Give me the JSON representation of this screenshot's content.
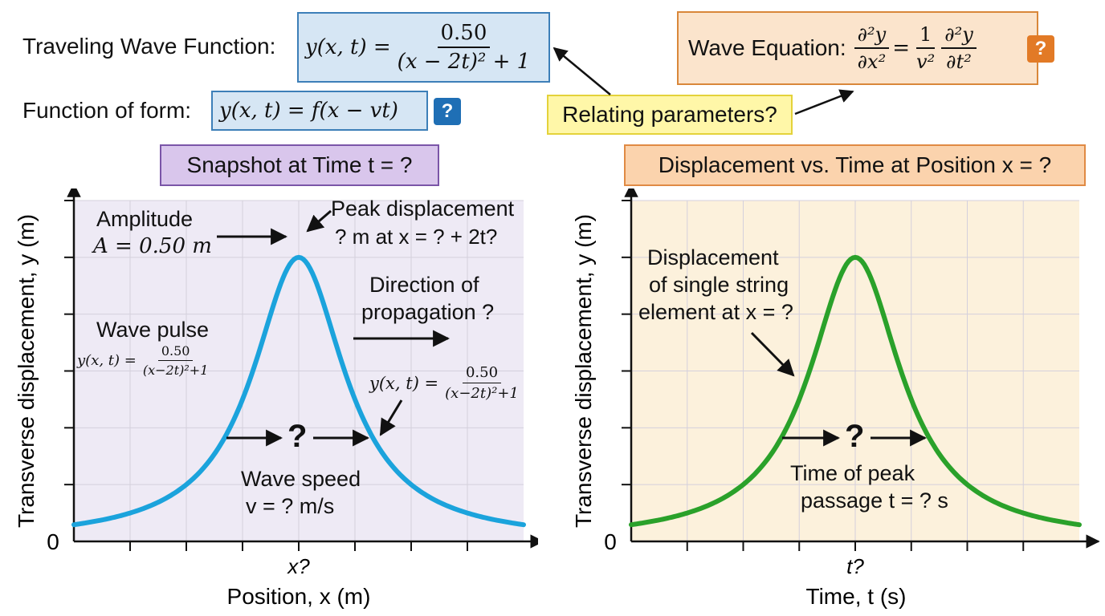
{
  "header": {
    "traveling_label": "Traveling Wave Function:",
    "traveling_lhs": "y(x, t) =",
    "traveling_num": "0.50",
    "traveling_den": "(x − 2t)² + 1",
    "form_label": "Function of form:",
    "form_expr": "y(x, t) = f(x − vt)",
    "form_badge": "?",
    "relating": "Relating parameters?",
    "wave_eq_label": "Wave Equation:",
    "wave_eq_lhs_num": "∂²y",
    "wave_eq_lhs_den": "∂x²",
    "wave_eq_eq": "=",
    "wave_eq_coef_num": "1",
    "wave_eq_coef_den": "v²",
    "wave_eq_rhs_num": "∂²y",
    "wave_eq_rhs_den": "∂t²",
    "wave_eq_badge": "?"
  },
  "left_panel": {
    "title": "Snapshot at Time t = ?",
    "ylabel": "Transverse displacement, y (m)",
    "xlabel": "Position, x (m)",
    "x_tick": "x?",
    "origin": "0",
    "amplitude_line1": "Amplitude",
    "amplitude_line2": "A = 0.50 m",
    "peak_line1": "Peak displacement",
    "peak_line2": "? m at x = ? + 2t?",
    "direction_line1": "Direction of",
    "direction_line2": "propagation ?",
    "pulse_label": "Wave pulse",
    "pulse_lhs": "y(x, t) =",
    "pulse_num": "0.50",
    "pulse_den": "(x−2t)²+1",
    "curve_lhs": "y(x, t) =",
    "curve_num": "0.50",
    "curve_den": "(x−2t)²+1",
    "question": "?",
    "speed_line1": "Wave speed",
    "speed_line2": "v = ? m/s"
  },
  "right_panel": {
    "title": "Displacement vs. Time at Position x = ?",
    "ylabel": "Transverse displacement, y (m)",
    "xlabel": "Time, t (s)",
    "x_tick": "t?",
    "origin": "0",
    "element_line1": "Displacement",
    "element_line2": "of single string",
    "element_line3": "element at x = ?",
    "question": "?",
    "time_line1": "Time of peak",
    "time_line2": "passage t = ? s"
  },
  "chart_data": [
    {
      "type": "line",
      "title": "Snapshot at Time t = ?",
      "xlabel": "Position, x (m)",
      "ylabel": "Transverse displacement, y (m)",
      "series": [
        {
          "name": "Wave pulse",
          "color": "#1ba3dc",
          "x": [
            -4,
            -3,
            -2,
            -1.5,
            -1,
            -0.5,
            0,
            0.5,
            1,
            1.5,
            2,
            3,
            4
          ],
          "values": [
            0.029,
            0.05,
            0.1,
            0.154,
            0.25,
            0.4,
            0.5,
            0.4,
            0.25,
            0.154,
            0.1,
            0.05,
            0.029
          ]
        }
      ],
      "ylim": [
        0,
        0.6
      ],
      "grid": true
    },
    {
      "type": "line",
      "title": "Displacement vs. Time at Position x = ?",
      "xlabel": "Time, t (s)",
      "ylabel": "Transverse displacement, y (m)",
      "series": [
        {
          "name": "",
          "color": "#2aa12a",
          "x": [
            -2,
            -1.5,
            -1,
            -0.75,
            -0.5,
            -0.25,
            0,
            0.25,
            0.5,
            0.75,
            1,
            1.5,
            2
          ],
          "values": [
            0.029,
            0.05,
            0.1,
            0.154,
            0.25,
            0.4,
            0.5,
            0.4,
            0.25,
            0.154,
            0.1,
            0.05,
            0.029
          ]
        }
      ],
      "ylim": [
        0,
        0.6
      ],
      "grid": true
    }
  ],
  "colors": {
    "blue_curve": "#1ba3dc",
    "green_curve": "#2aa12a",
    "blue_badge": "#1f6fb5",
    "orange_badge": "#e27a26"
  }
}
